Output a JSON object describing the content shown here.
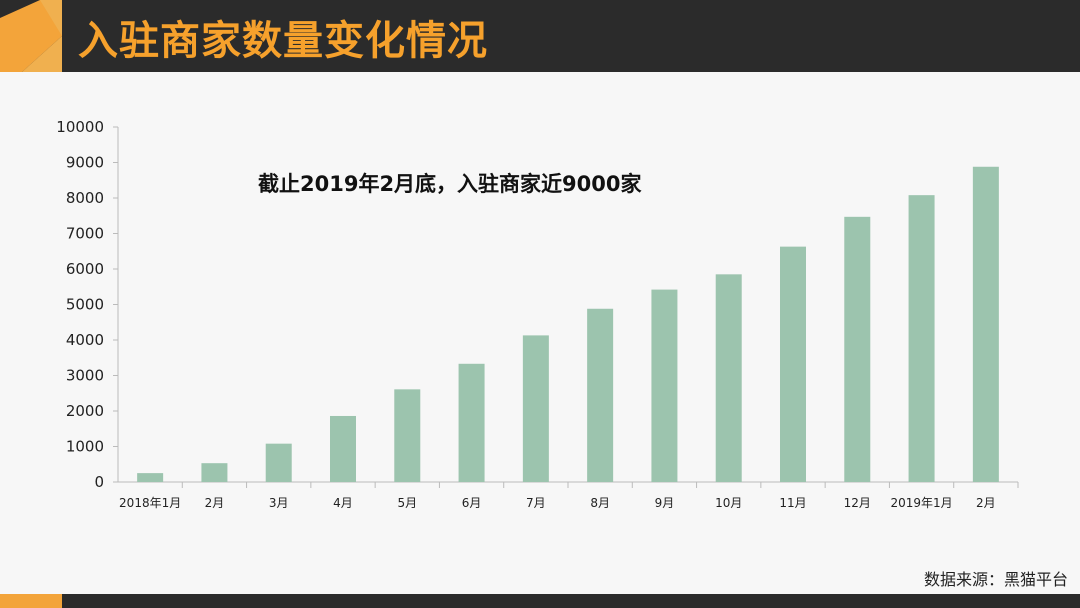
{
  "header": {
    "title": "入驻商家数量变化情况"
  },
  "colors": {
    "bar": "#9cc4ae",
    "title": "#f6a12c",
    "header_bg": "#2b2b2b",
    "accent": "#f3a43a"
  },
  "chart_data": {
    "type": "bar",
    "title": "",
    "annotation": "截止2019年2月底，入驻商家近9000家",
    "xlabel": "",
    "ylabel": "",
    "ylim": [
      0,
      10000
    ],
    "yticks": [
      0,
      1000,
      2000,
      3000,
      4000,
      5000,
      6000,
      7000,
      8000,
      9000,
      10000
    ],
    "categories": [
      "2018年1月",
      "2月",
      "3月",
      "4月",
      "5月",
      "6月",
      "7月",
      "8月",
      "9月",
      "10月",
      "11月",
      "12月",
      "2019年1月",
      "2月"
    ],
    "values": [
      250,
      530,
      1080,
      1860,
      2610,
      3330,
      4130,
      4880,
      5420,
      5850,
      6630,
      7470,
      8080,
      8880
    ],
    "grid": false
  },
  "footer": {
    "source": "数据来源：黑猫平台"
  }
}
